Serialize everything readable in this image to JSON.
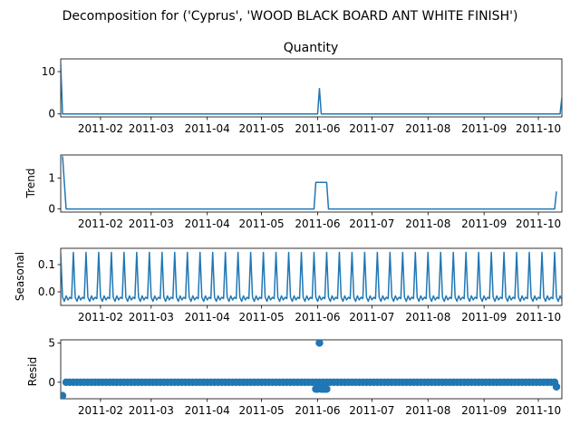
{
  "chart_data": {
    "type": "line",
    "suptitle": "Decomposition for ('Cyprus', 'WOOD BLACK BOARD ANT WHITE FINISH')",
    "color": "#1f77b4",
    "x_tick_labels": [
      "2011-02",
      "2011-03",
      "2011-04",
      "2011-05",
      "2011-06",
      "2011-07",
      "2011-08",
      "2011-09",
      "2011-10"
    ],
    "x_tick_dates": [
      "2011-02-01",
      "2011-03-01",
      "2011-04-01",
      "2011-05-01",
      "2011-06-01",
      "2011-07-01",
      "2011-08-01",
      "2011-09-01",
      "2011-10-01"
    ],
    "x_range": [
      "2011-01-10",
      "2011-10-14"
    ],
    "panels": [
      {
        "key": "observed",
        "type": "line",
        "title": "Quantity",
        "ylabel": "",
        "ylim": [
          -0.7,
          13
        ],
        "yticks": [
          0,
          10
        ],
        "ytick_labels": [
          "0",
          "10"
        ],
        "series": [
          {
            "x": "2011-01-10",
            "y": 12
          },
          {
            "x": "2011-01-11",
            "y": 0
          },
          {
            "x": "2011-06-01",
            "y": 0
          },
          {
            "x": "2011-06-02",
            "y": 6
          },
          {
            "x": "2011-06-03",
            "y": 0
          },
          {
            "x": "2011-10-13",
            "y": 0
          },
          {
            "x": "2011-10-14",
            "y": 4
          }
        ]
      },
      {
        "key": "trend",
        "type": "line",
        "title": "",
        "ylabel": "Trend",
        "ylim": [
          -0.1,
          1.75
        ],
        "yticks": [
          0,
          1
        ],
        "ytick_labels": [
          "0",
          "1"
        ],
        "series": [
          {
            "x": "2011-01-11",
            "y": 1.71
          },
          {
            "x": "2011-01-13",
            "y": 0
          },
          {
            "x": "2011-05-30",
            "y": 0
          },
          {
            "x": "2011-05-31",
            "y": 0.86
          },
          {
            "x": "2011-06-06",
            "y": 0.86
          },
          {
            "x": "2011-06-07",
            "y": 0
          },
          {
            "x": "2011-10-10",
            "y": 0
          },
          {
            "x": "2011-10-11",
            "y": 0.57
          }
        ]
      },
      {
        "key": "seasonal",
        "type": "line",
        "title": "",
        "ylabel": "Seasonal",
        "ylim": [
          -0.05,
          0.16
        ],
        "yticks": [
          0.0,
          0.1
        ],
        "ytick_labels": [
          "0.0",
          "0.1"
        ],
        "weekly_pattern": [
          0.145,
          -0.02,
          -0.035,
          -0.015,
          -0.03,
          -0.02,
          -0.025
        ],
        "pattern_start": "2011-01-10",
        "pattern_end": "2011-10-14"
      },
      {
        "key": "resid",
        "type": "scatter",
        "title": "",
        "ylabel": "Resid",
        "ylim": [
          -2.1,
          5.4
        ],
        "yticks": [
          0,
          5
        ],
        "ytick_labels": [
          "0",
          "5"
        ],
        "baseline": 0,
        "baseline_start": "2011-01-13",
        "baseline_end": "2011-10-11",
        "points": [
          {
            "x": "2011-01-11",
            "y": -1.7
          },
          {
            "x": "2011-05-31",
            "y": -0.86
          },
          {
            "x": "2011-06-01",
            "y": -0.86
          },
          {
            "x": "2011-06-02",
            "y": 5.0
          },
          {
            "x": "2011-06-03",
            "y": -0.86
          },
          {
            "x": "2011-06-04",
            "y": -0.86
          },
          {
            "x": "2011-06-05",
            "y": -0.86
          },
          {
            "x": "2011-06-06",
            "y": -0.86
          },
          {
            "x": "2011-10-11",
            "y": -0.57
          }
        ]
      }
    ]
  }
}
